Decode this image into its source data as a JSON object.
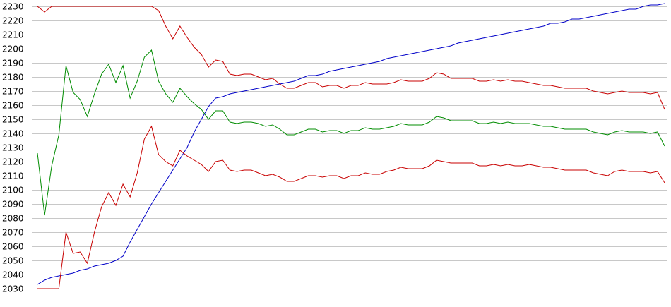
{
  "chart_data": {
    "type": "line",
    "title": "",
    "xlabel": "",
    "ylabel": "",
    "ylim": [
      2030,
      2230
    ],
    "y_ticks": [
      2030,
      2040,
      2050,
      2060,
      2070,
      2080,
      2090,
      2100,
      2110,
      2120,
      2130,
      2140,
      2150,
      2160,
      2170,
      2180,
      2190,
      2200,
      2210,
      2220,
      2230
    ],
    "grid": "horizontal",
    "legend": "none",
    "x_count": 89,
    "series": [
      {
        "color": "#0000c8",
        "values": [
          2033,
          2036,
          2038,
          2039,
          2040,
          2041,
          2043,
          2044,
          2046,
          2047,
          2048,
          2050,
          2053,
          2063,
          2072,
          2081,
          2090,
          2098,
          2106,
          2114,
          2122,
          2130,
          2141,
          2150,
          2159,
          2165,
          2166,
          2168,
          2169,
          2170,
          2171,
          2172,
          2173,
          2174,
          2175,
          2176,
          2177,
          2179,
          2181,
          2181,
          2182,
          2184,
          2185,
          2186,
          2187,
          2188,
          2189,
          2190,
          2191,
          2193,
          2194,
          2195,
          2196,
          2197,
          2198,
          2199,
          2200,
          2201,
          2202,
          2204,
          2205,
          2206,
          2207,
          2208,
          2209,
          2210,
          2211,
          2212,
          2213,
          2214,
          2215,
          2216,
          2218,
          2218,
          2219,
          2221,
          2221,
          2222,
          2223,
          2224,
          2225,
          2226,
          2227,
          2228,
          2228,
          2230,
          2231,
          2231,
          2232
        ]
      },
      {
        "color": "#c80000",
        "values": [
          2230,
          2226,
          2230,
          2230,
          2230,
          2230,
          2230,
          2230,
          2230,
          2230,
          2230,
          2230,
          2230,
          2230,
          2230,
          2230,
          2230,
          2227,
          2216,
          2207,
          2216,
          2208,
          2201,
          2196,
          2187,
          2192,
          2191,
          2182,
          2181,
          2182,
          2182,
          2180,
          2178,
          2179,
          2175,
          2172,
          2172,
          2174,
          2176,
          2176,
          2173,
          2174,
          2174,
          2172,
          2174,
          2174,
          2176,
          2175,
          2175,
          2175,
          2176,
          2178,
          2177,
          2177,
          2177,
          2179,
          2183,
          2182,
          2179,
          2179,
          2179,
          2179,
          2177,
          2177,
          2178,
          2177,
          2178,
          2177,
          2177,
          2176,
          2175,
          2174,
          2174,
          2173,
          2172,
          2172,
          2172,
          2172,
          2170,
          2169,
          2168,
          2169,
          2170,
          2169,
          2169,
          2169,
          2168,
          2169,
          2157
        ]
      },
      {
        "color": "#008c00",
        "values": [
          2126,
          2082,
          2117,
          2139,
          2188,
          2169,
          2164,
          2152,
          2168,
          2182,
          2189,
          2176,
          2188,
          2165,
          2177,
          2194,
          2199,
          2177,
          2168,
          2162,
          2172,
          2166,
          2161,
          2157,
          2150,
          2156,
          2156,
          2148,
          2147,
          2148,
          2148,
          2147,
          2145,
          2146,
          2143,
          2139,
          2139,
          2141,
          2143,
          2143,
          2141,
          2142,
          2142,
          2140,
          2142,
          2142,
          2144,
          2143,
          2143,
          2144,
          2145,
          2147,
          2146,
          2146,
          2146,
          2148,
          2152,
          2151,
          2149,
          2149,
          2149,
          2149,
          2147,
          2147,
          2148,
          2147,
          2148,
          2147,
          2147,
          2147,
          2146,
          2145,
          2145,
          2144,
          2143,
          2143,
          2143,
          2143,
          2141,
          2140,
          2139,
          2141,
          2142,
          2141,
          2141,
          2141,
          2140,
          2141,
          2131
        ]
      },
      {
        "color": "#c80000",
        "values": [
          2030,
          2030,
          2030,
          2030,
          2070,
          2055,
          2056,
          2048,
          2070,
          2088,
          2098,
          2089,
          2104,
          2095,
          2112,
          2136,
          2145,
          2125,
          2120,
          2117,
          2128,
          2124,
          2121,
          2118,
          2113,
          2120,
          2121,
          2114,
          2113,
          2114,
          2114,
          2112,
          2110,
          2111,
          2109,
          2106,
          2106,
          2108,
          2110,
          2110,
          2109,
          2110,
          2110,
          2108,
          2110,
          2110,
          2112,
          2111,
          2111,
          2113,
          2114,
          2116,
          2115,
          2115,
          2115,
          2117,
          2121,
          2120,
          2119,
          2119,
          2119,
          2119,
          2117,
          2117,
          2118,
          2117,
          2118,
          2117,
          2117,
          2118,
          2117,
          2116,
          2116,
          2115,
          2114,
          2114,
          2114,
          2114,
          2112,
          2111,
          2110,
          2113,
          2114,
          2113,
          2113,
          2113,
          2112,
          2113,
          2105
        ]
      }
    ]
  }
}
